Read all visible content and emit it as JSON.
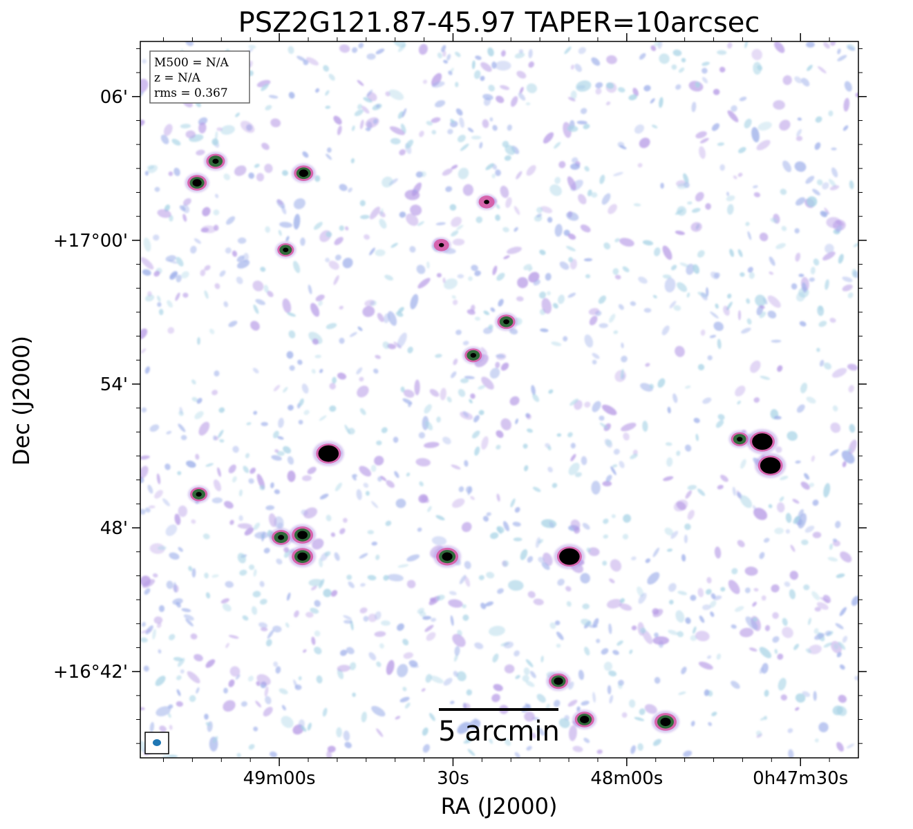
{
  "chart_data": {
    "type": "heatmap",
    "title": "PSZ2G121.87-45.97 TAPER=10arcsec",
    "xlabel": "RA (J2000)",
    "ylabel": "Dec (J2000)",
    "x_ticks": [
      {
        "label": "49m00s",
        "ra_sec": 60
      },
      {
        "label": "30s",
        "ra_sec": 30
      },
      {
        "label": "48m00s",
        "ra_sec": 0
      },
      {
        "label": "0h47m30s",
        "ra_sec": -30
      }
    ],
    "y_ticks": [
      {
        "label": "06'",
        "dec_arcmin": 6
      },
      {
        "label": "+17°00'",
        "dec_arcmin": 0
      },
      {
        "label": "54'",
        "dec_arcmin": -6
      },
      {
        "label": "48'",
        "dec_arcmin": -12
      },
      {
        "label": "+16°42'",
        "dec_arcmin": -18
      }
    ],
    "xlim_ra_sec": [
      84,
      -40
    ],
    "ylim_dec_arcmin": [
      8.3,
      -21.6
    ],
    "grid": false,
    "info_box": {
      "position": "top-left",
      "lines": [
        "M500 = N/A",
        "z = N/A",
        "rms = 0.367"
      ]
    },
    "scalebar": {
      "label": "5 arcmin",
      "length_arcmin": 5,
      "position": "bottom-center"
    },
    "beam": {
      "position": "bottom-left",
      "color": "#1f77b4"
    },
    "colors": {
      "noise_light": "#a9d4e6",
      "noise_blue": "#9fb0ea",
      "noise_purple": "#b79be6",
      "source_rim": "#d65aa5",
      "source_core_green": "#2f6a3a",
      "source_peak": "#000000"
    },
    "sources": [
      {
        "ra_sec": 74.2,
        "dec_arcmin": 2.4,
        "peak": 0.6
      },
      {
        "ra_sec": 71.0,
        "dec_arcmin": 3.3,
        "peak": 0.55
      },
      {
        "ra_sec": 55.8,
        "dec_arcmin": 2.8,
        "peak": 0.6
      },
      {
        "ra_sec": 24.2,
        "dec_arcmin": 1.6,
        "peak": 0.35
      },
      {
        "ra_sec": 58.9,
        "dec_arcmin": -0.4,
        "peak": 0.4
      },
      {
        "ra_sec": 32.0,
        "dec_arcmin": -0.2,
        "peak": 0.3
      },
      {
        "ra_sec": 20.8,
        "dec_arcmin": -3.4,
        "peak": 0.5
      },
      {
        "ra_sec": 26.5,
        "dec_arcmin": -4.8,
        "peak": 0.45
      },
      {
        "ra_sec": 51.5,
        "dec_arcmin": -8.9,
        "peak": 1.0
      },
      {
        "ra_sec": 73.9,
        "dec_arcmin": -10.6,
        "peak": 0.45
      },
      {
        "ra_sec": 59.7,
        "dec_arcmin": -12.4,
        "peak": 0.55
      },
      {
        "ra_sec": 56.0,
        "dec_arcmin": -12.3,
        "peak": 0.75
      },
      {
        "ra_sec": 56.0,
        "dec_arcmin": -13.2,
        "peak": 0.75
      },
      {
        "ra_sec": 31.0,
        "dec_arcmin": -13.2,
        "peak": 0.8
      },
      {
        "ra_sec": 9.9,
        "dec_arcmin": -13.2,
        "peak": 1.0
      },
      {
        "ra_sec": 11.8,
        "dec_arcmin": -18.4,
        "peak": 0.6
      },
      {
        "ra_sec": 7.3,
        "dec_arcmin": -20.0,
        "peak": 0.6
      },
      {
        "ra_sec": -6.7,
        "dec_arcmin": -20.1,
        "peak": 0.8
      },
      {
        "ra_sec": -19.5,
        "dec_arcmin": -8.3,
        "peak": 0.45
      },
      {
        "ra_sec": -23.4,
        "dec_arcmin": -8.4,
        "peak": 1.0
      },
      {
        "ra_sec": -24.8,
        "dec_arcmin": -9.4,
        "peak": 1.0
      }
    ]
  }
}
